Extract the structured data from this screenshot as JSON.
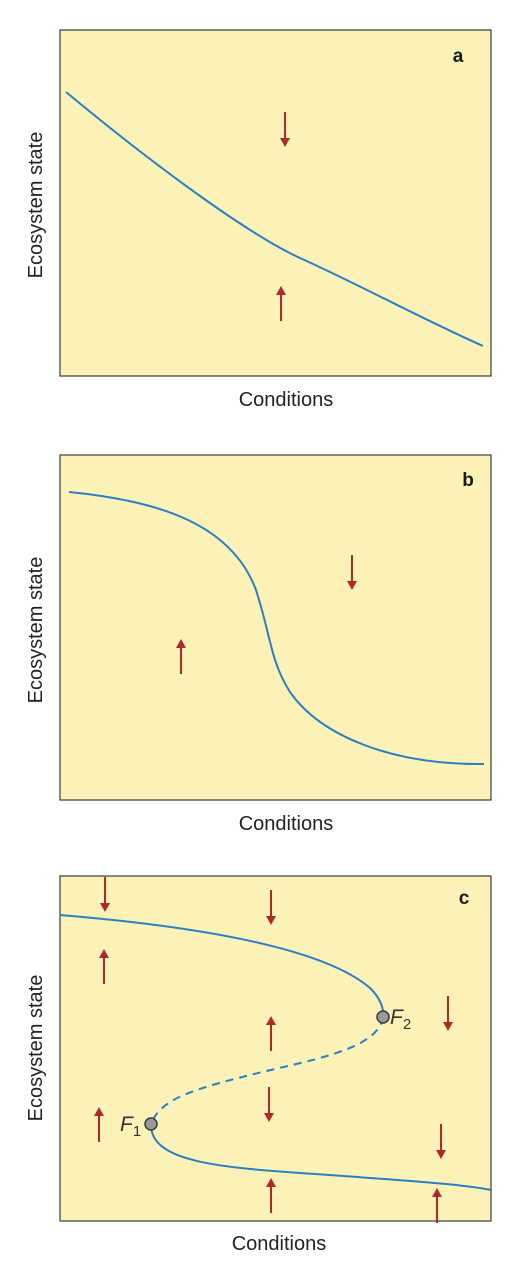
{
  "panels": [
    {
      "letter": "a",
      "xlabel": "Conditions",
      "ylabel": "Ecosystem state"
    },
    {
      "letter": "b",
      "xlabel": "Conditions",
      "ylabel": "Ecosystem state"
    },
    {
      "letter": "c",
      "xlabel": "Conditions",
      "ylabel": "Ecosystem state",
      "fold_points": [
        {
          "name": "F",
          "subscript": "1"
        },
        {
          "name": "F",
          "subscript": "2"
        }
      ]
    }
  ],
  "colors": {
    "background": "#fcf2b7",
    "curve": "#2b7fc2",
    "arrow": "#b0282a"
  }
}
